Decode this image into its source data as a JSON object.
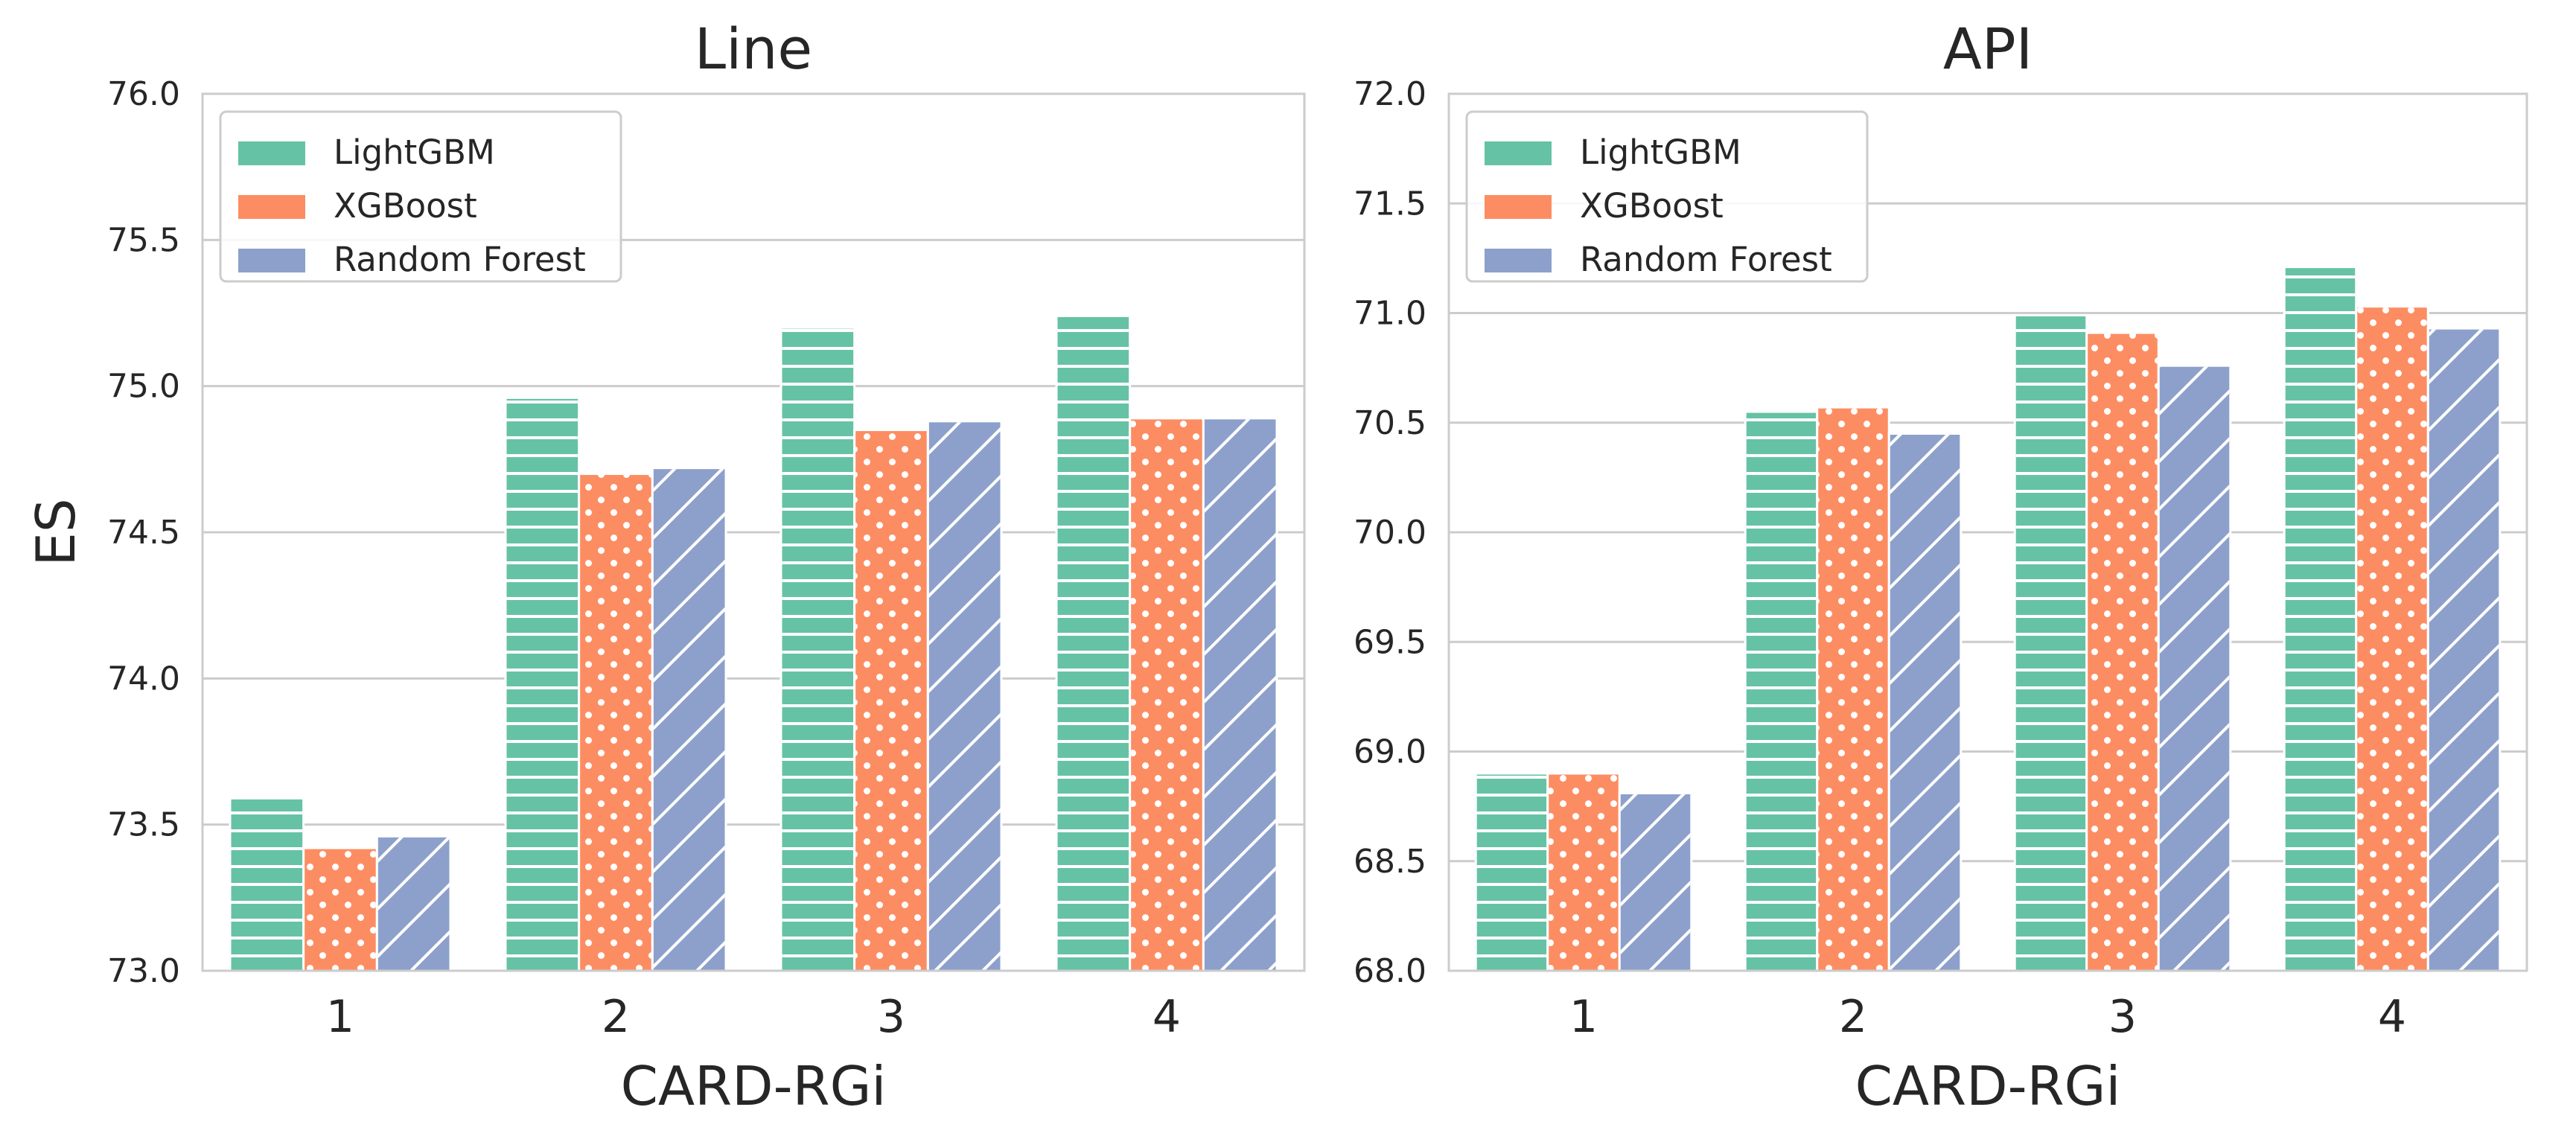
{
  "chart_data": [
    {
      "type": "bar",
      "title": "Line",
      "xlabel": "CARD-RGi",
      "ylabel": "ES",
      "categories": [
        "1",
        "2",
        "3",
        "4"
      ],
      "ylim": [
        73.0,
        76.0
      ],
      "yticks": [
        "73.0",
        "73.5",
        "74.0",
        "74.5",
        "75.0",
        "75.5",
        "76.0"
      ],
      "grid": true,
      "legend_position": "top-left",
      "series": [
        {
          "name": "LightGBM",
          "color": "#66c2a5",
          "hatch": "horizontal-lines",
          "values": [
            73.59,
            74.96,
            75.2,
            75.24
          ]
        },
        {
          "name": "XGBoost",
          "color": "#fc8d62",
          "hatch": "dots",
          "values": [
            73.42,
            74.7,
            74.85,
            74.89
          ]
        },
        {
          "name": "Random Forest",
          "color": "#8da0cb",
          "hatch": "diagonal-lines",
          "values": [
            73.46,
            74.72,
            74.88,
            74.89
          ]
        }
      ]
    },
    {
      "type": "bar",
      "title": "API",
      "xlabel": "CARD-RGi",
      "ylabel": "",
      "categories": [
        "1",
        "2",
        "3",
        "4"
      ],
      "ylim": [
        68.0,
        72.0
      ],
      "yticks": [
        "68.0",
        "68.5",
        "69.0",
        "69.5",
        "70.0",
        "70.5",
        "71.0",
        "71.5",
        "72.0"
      ],
      "grid": true,
      "legend_position": "top-left",
      "series": [
        {
          "name": "LightGBM",
          "color": "#66c2a5",
          "hatch": "horizontal-lines",
          "values": [
            68.9,
            70.55,
            70.99,
            71.21
          ]
        },
        {
          "name": "XGBoost",
          "color": "#fc8d62",
          "hatch": "dots",
          "values": [
            68.9,
            70.57,
            70.91,
            71.03
          ]
        },
        {
          "name": "Random Forest",
          "color": "#8da0cb",
          "hatch": "diagonal-lines",
          "values": [
            68.81,
            70.45,
            70.76,
            70.93
          ]
        }
      ]
    }
  ]
}
